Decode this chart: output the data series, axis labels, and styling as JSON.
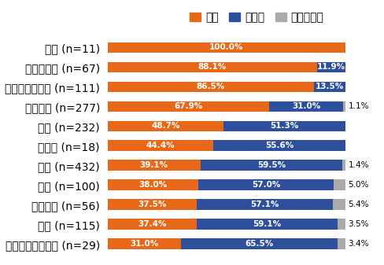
{
  "categories": [
    "数学 (n=11)",
    "計算機科学 (n=67)",
    "物理学・天文学 (n=111)",
    "生物科学 (n=277)",
    "化学 (n=232)",
    "心理学 (n=18)",
    "工学 (n=432)",
    "医学 (n=100)",
    "地球科学 (n=56)",
    "農学 (n=115)",
    "人文学・社会科学 (n=29)"
  ],
  "hai": [
    100.0,
    88.1,
    86.5,
    67.9,
    48.7,
    44.4,
    39.1,
    38.0,
    37.5,
    37.4,
    31.0
  ],
  "iie": [
    0.0,
    11.9,
    13.5,
    31.0,
    51.3,
    55.6,
    59.5,
    57.0,
    57.1,
    59.1,
    65.5
  ],
  "wakaranai": [
    0.0,
    0.0,
    0.0,
    1.1,
    0.0,
    0.0,
    1.4,
    5.0,
    5.4,
    3.5,
    3.4
  ],
  "color_hai": "#E8681A",
  "color_iie": "#2E4F9B",
  "color_wakaranai": "#AAAAAA",
  "legend_labels": [
    "はい",
    "いいえ",
    "わからない"
  ],
  "bar_height": 0.55,
  "label_fontsize": 7.5,
  "tick_fontsize": 7.5,
  "xlim_max": 108
}
